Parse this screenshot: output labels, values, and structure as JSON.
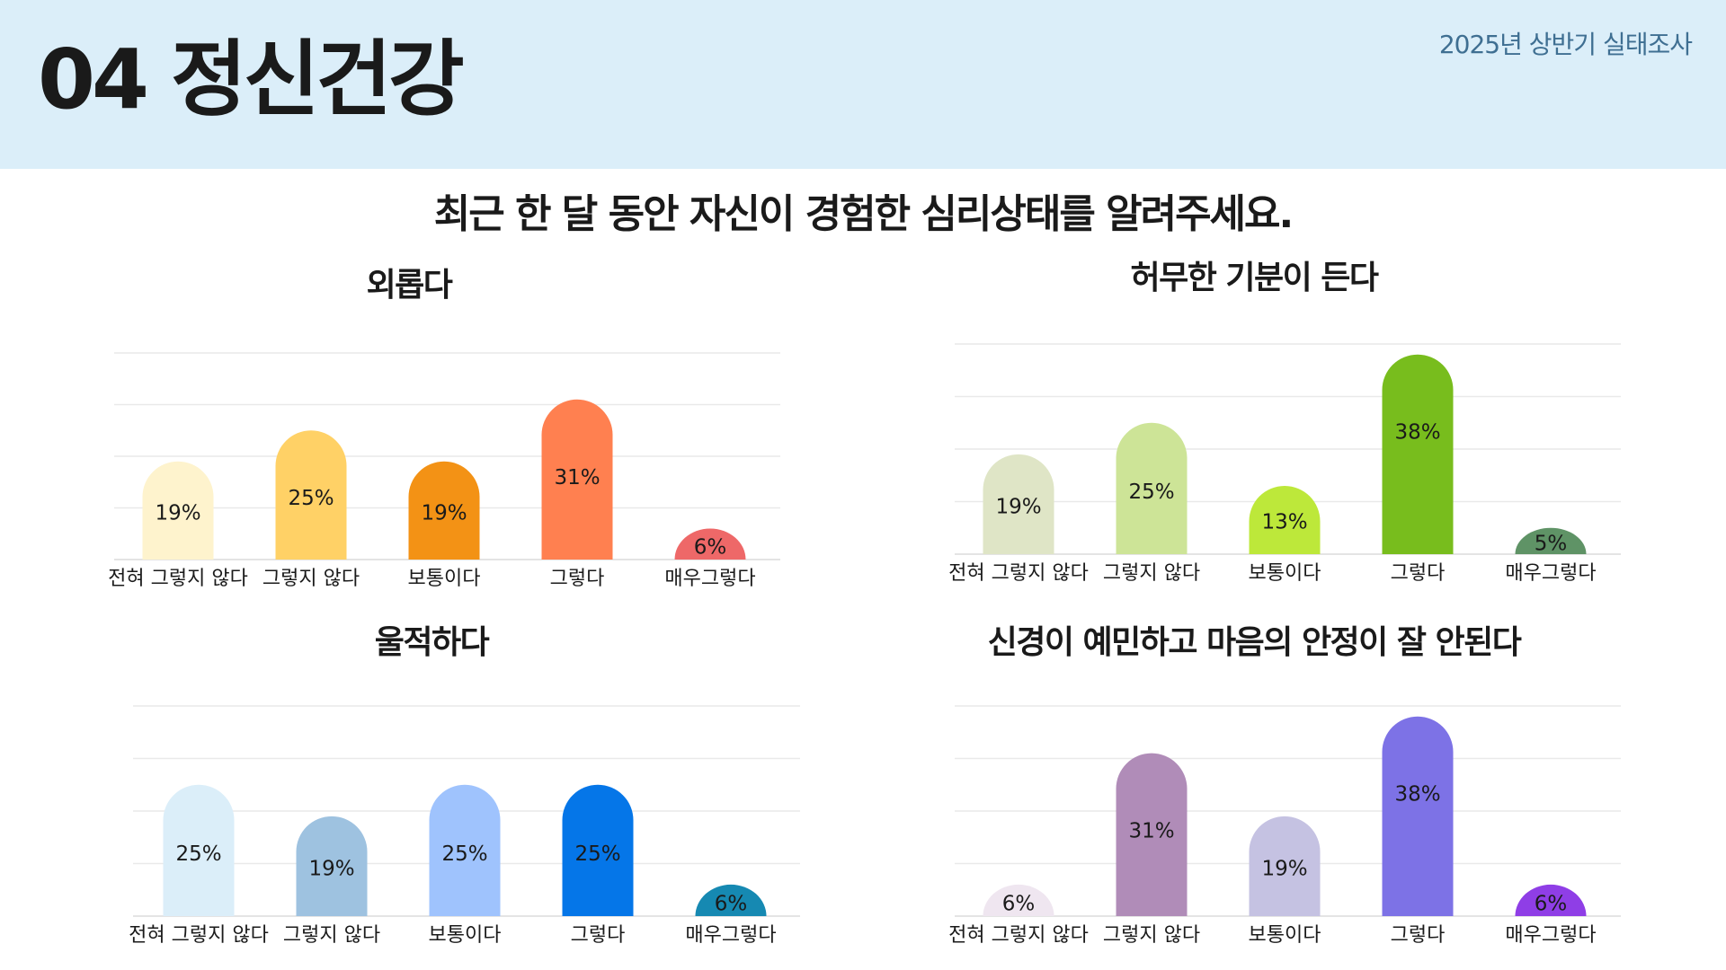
{
  "header": {
    "title": "04 정신건강",
    "survey_label": "2025년 상반기 실태조사"
  },
  "question": "최근 한 달 동안 자신이 경험한 심리상태를 알려주세요.",
  "chart_data": [
    {
      "type": "bar",
      "title": "외롭다",
      "categories": [
        "전혀 그렇지 않다",
        "그렇지 않다",
        "보통이다",
        "그렇다",
        "매우그렇다"
      ],
      "values": [
        19,
        25,
        19,
        31,
        6
      ],
      "value_labels": [
        "19%",
        "25%",
        "19%",
        "31%",
        "6%"
      ],
      "colors": [
        "#fef3cd",
        "#ffd166",
        "#f39215",
        "#ff8050",
        "#ee6868"
      ],
      "ylim": [
        0,
        40
      ],
      "grid": true
    },
    {
      "type": "bar",
      "title": "허무한 기분이 든다",
      "categories": [
        "전혀 그렇지 않다",
        "그렇지 않다",
        "보통이다",
        "그렇다",
        "매우그렇다"
      ],
      "values": [
        19,
        25,
        13,
        38,
        5
      ],
      "value_labels": [
        "19%",
        "25%",
        "13%",
        "38%",
        "5%"
      ],
      "colors": [
        "#dfe5c6",
        "#cde497",
        "#bde83a",
        "#78bd1d",
        "#5f9366"
      ],
      "ylim": [
        0,
        40
      ],
      "grid": true
    },
    {
      "type": "bar",
      "title": "울적하다",
      "categories": [
        "전혀 그렇지 않다",
        "그렇지 않다",
        "보통이다",
        "그렇다",
        "매우그렇다"
      ],
      "values": [
        25,
        19,
        25,
        25,
        6
      ],
      "value_labels": [
        "25%",
        "19%",
        "25%",
        "25%",
        "6%"
      ],
      "colors": [
        "#dbeef9",
        "#9ec2e0",
        "#9fc3fd",
        "#0576e8",
        "#1689b2"
      ],
      "ylim": [
        0,
        40
      ],
      "grid": true
    },
    {
      "type": "bar",
      "title": "신경이 예민하고 마음의 안정이 잘 안된다",
      "categories": [
        "전혀 그렇지 않다",
        "그렇지 않다",
        "보통이다",
        "그렇다",
        "매우그렇다"
      ],
      "values": [
        6,
        31,
        19,
        38,
        6
      ],
      "value_labels": [
        "6%",
        "31%",
        "19%",
        "38%",
        "6%"
      ],
      "colors": [
        "#efe6f0",
        "#b08cb8",
        "#c5c2e2",
        "#7d72e6",
        "#8f3ee6"
      ],
      "ylim": [
        0,
        40
      ],
      "grid": true
    }
  ]
}
